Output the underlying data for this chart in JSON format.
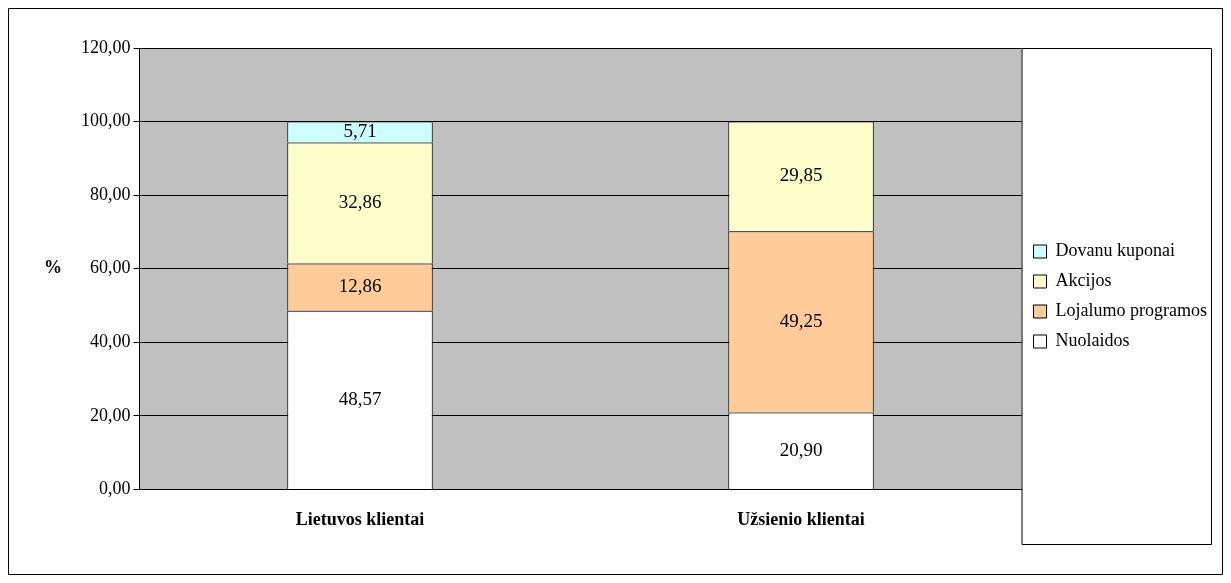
{
  "chart_data": {
    "type": "bar",
    "stacked": true,
    "ylabel": "%",
    "categories": [
      "Lietuvos klientai",
      "Užsienio klientai"
    ],
    "series": [
      {
        "name": "Nuolaidos",
        "color": "#ffffff",
        "values": [
          48.57,
          20.9
        ],
        "value_labels": [
          "48,57",
          "20,90"
        ]
      },
      {
        "name": "Lojalumo programos",
        "color": "#ffcc99",
        "values": [
          12.86,
          49.25
        ],
        "value_labels": [
          "12,86",
          "49,25"
        ]
      },
      {
        "name": "Akcijos",
        "color": "#ffffcc",
        "values": [
          32.86,
          29.85
        ],
        "value_labels": [
          "32,86",
          "29,85"
        ]
      },
      {
        "name": "Dovanu kuponai",
        "color": "#ccffff",
        "values": [
          5.71,
          null
        ],
        "value_labels": [
          "5,71",
          null
        ]
      }
    ],
    "ylim": [
      0,
      120
    ],
    "yticks": [
      {
        "value": 0,
        "label": "0,00"
      },
      {
        "value": 20,
        "label": "20,00"
      },
      {
        "value": 40,
        "label": "40,00"
      },
      {
        "value": 60,
        "label": "60,00"
      },
      {
        "value": 80,
        "label": "80,00"
      },
      {
        "value": 100,
        "label": "100,00"
      },
      {
        "value": 120,
        "label": "120,00"
      }
    ],
    "grid": "y",
    "legend": "right"
  }
}
